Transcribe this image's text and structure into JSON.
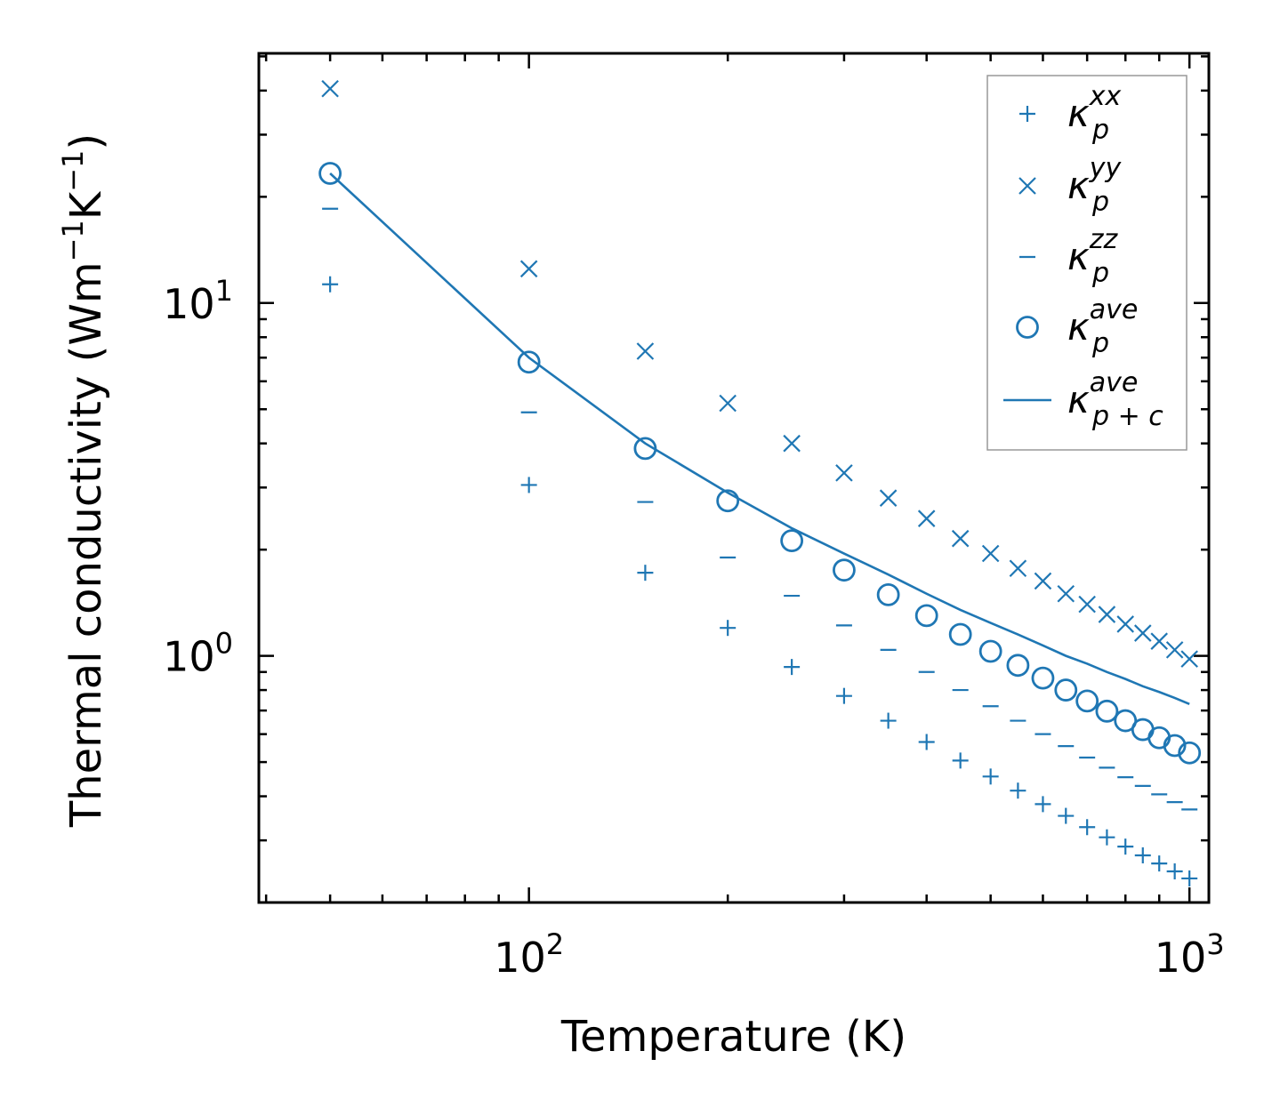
{
  "chart_data": {
    "type": "scatter",
    "title": "",
    "xlabel": "Temperature (K)",
    "ylabel_parts": {
      "prefix": "Thermal conductivity (Wm",
      "exp1": "−1",
      "mid": "K",
      "exp2": "−1",
      "suffix": ")"
    },
    "xscale": "log",
    "yscale": "log",
    "xlim": [
      39,
      1070
    ],
    "ylim": [
      0.2,
      51
    ],
    "x_ticks": [
      {
        "value": 100,
        "base": "10",
        "exp": "2"
      },
      {
        "value": 1000,
        "base": "10",
        "exp": "3"
      }
    ],
    "y_ticks": [
      {
        "value": 1,
        "base": "10",
        "exp": "0"
      },
      {
        "value": 10,
        "base": "10",
        "exp": "1"
      }
    ],
    "color": "#1f77b4",
    "x": [
      50,
      100,
      150,
      200,
      250,
      300,
      350,
      400,
      450,
      500,
      550,
      600,
      650,
      700,
      750,
      800,
      850,
      900,
      950,
      1000
    ],
    "series": [
      {
        "name": "kappa_p_xx",
        "marker": "plus",
        "legend_main": "κ",
        "legend_sup": "xx",
        "legend_sub": "p",
        "values": [
          11.3,
          3.05,
          1.72,
          1.2,
          0.93,
          0.77,
          0.655,
          0.57,
          0.505,
          0.455,
          0.415,
          0.38,
          0.352,
          0.327,
          0.306,
          0.288,
          0.272,
          0.258,
          0.245,
          0.234
        ]
      },
      {
        "name": "kappa_p_yy",
        "marker": "cross",
        "legend_main": "κ",
        "legend_sup": "yy",
        "legend_sub": "p",
        "values": [
          40.5,
          12.5,
          7.3,
          5.2,
          4.0,
          3.3,
          2.8,
          2.45,
          2.15,
          1.95,
          1.77,
          1.63,
          1.5,
          1.4,
          1.31,
          1.23,
          1.16,
          1.1,
          1.04,
          0.98
        ]
      },
      {
        "name": "kappa_p_zz",
        "marker": "minus",
        "legend_main": "κ",
        "legend_sup": "zz",
        "legend_sub": "p",
        "values": [
          18.5,
          4.9,
          2.73,
          1.9,
          1.48,
          1.22,
          1.04,
          0.9,
          0.8,
          0.72,
          0.655,
          0.6,
          0.555,
          0.515,
          0.482,
          0.453,
          0.428,
          0.405,
          0.385,
          0.367
        ]
      },
      {
        "name": "kappa_p_ave",
        "marker": "circle",
        "legend_main": "κ",
        "legend_sup": "ave",
        "legend_sub": "p",
        "values": [
          23.3,
          6.8,
          3.87,
          2.75,
          2.12,
          1.75,
          1.49,
          1.3,
          1.15,
          1.03,
          0.94,
          0.865,
          0.8,
          0.745,
          0.697,
          0.655,
          0.618,
          0.586,
          0.557,
          0.531
        ]
      },
      {
        "name": "kappa_p_plus_c_ave",
        "marker": "line",
        "legend_main": "κ",
        "legend_sup": "ave",
        "legend_sub": "p + c",
        "values": [
          23.3,
          7.0,
          4.0,
          2.9,
          2.3,
          1.95,
          1.7,
          1.5,
          1.35,
          1.24,
          1.15,
          1.07,
          1.0,
          0.95,
          0.9,
          0.86,
          0.82,
          0.79,
          0.76,
          0.73
        ]
      }
    ],
    "legend_position": "top-right"
  }
}
